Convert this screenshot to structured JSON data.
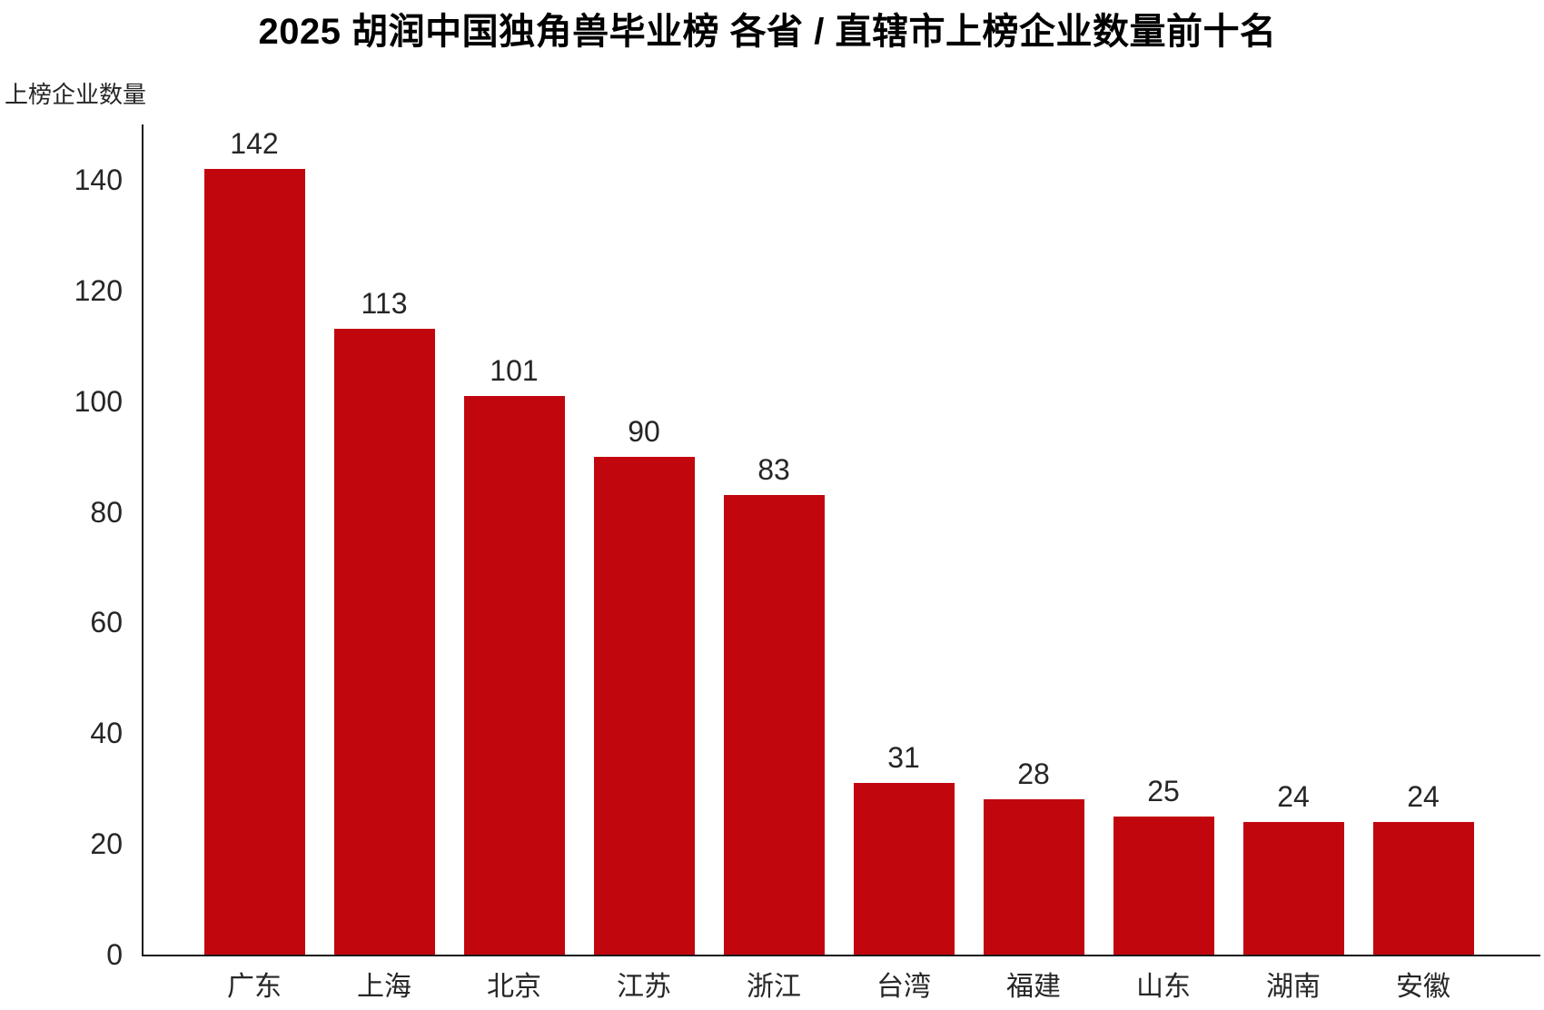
{
  "chart_data": {
    "type": "bar",
    "title": "2025 胡润中国独角兽毕业榜 各省 / 直辖市上榜企业数量前十名",
    "ylabel": "上榜企业数量",
    "xlabel": "",
    "categories": [
      "广东",
      "上海",
      "北京",
      "江苏",
      "浙江",
      "台湾",
      "福建",
      "山东",
      "湖南",
      "安徽"
    ],
    "values": [
      142,
      113,
      101,
      90,
      83,
      31,
      28,
      25,
      24,
      24
    ],
    "yticks": [
      0,
      20,
      40,
      60,
      80,
      100,
      120,
      140
    ],
    "ylim": [
      0,
      150
    ],
    "grid": false,
    "legend": false,
    "data_labels": true,
    "colors": {
      "bar": "#c2060e",
      "axis": "#1a1a1a",
      "text": "#262626",
      "title": "#000000",
      "background": "#ffffff"
    }
  }
}
